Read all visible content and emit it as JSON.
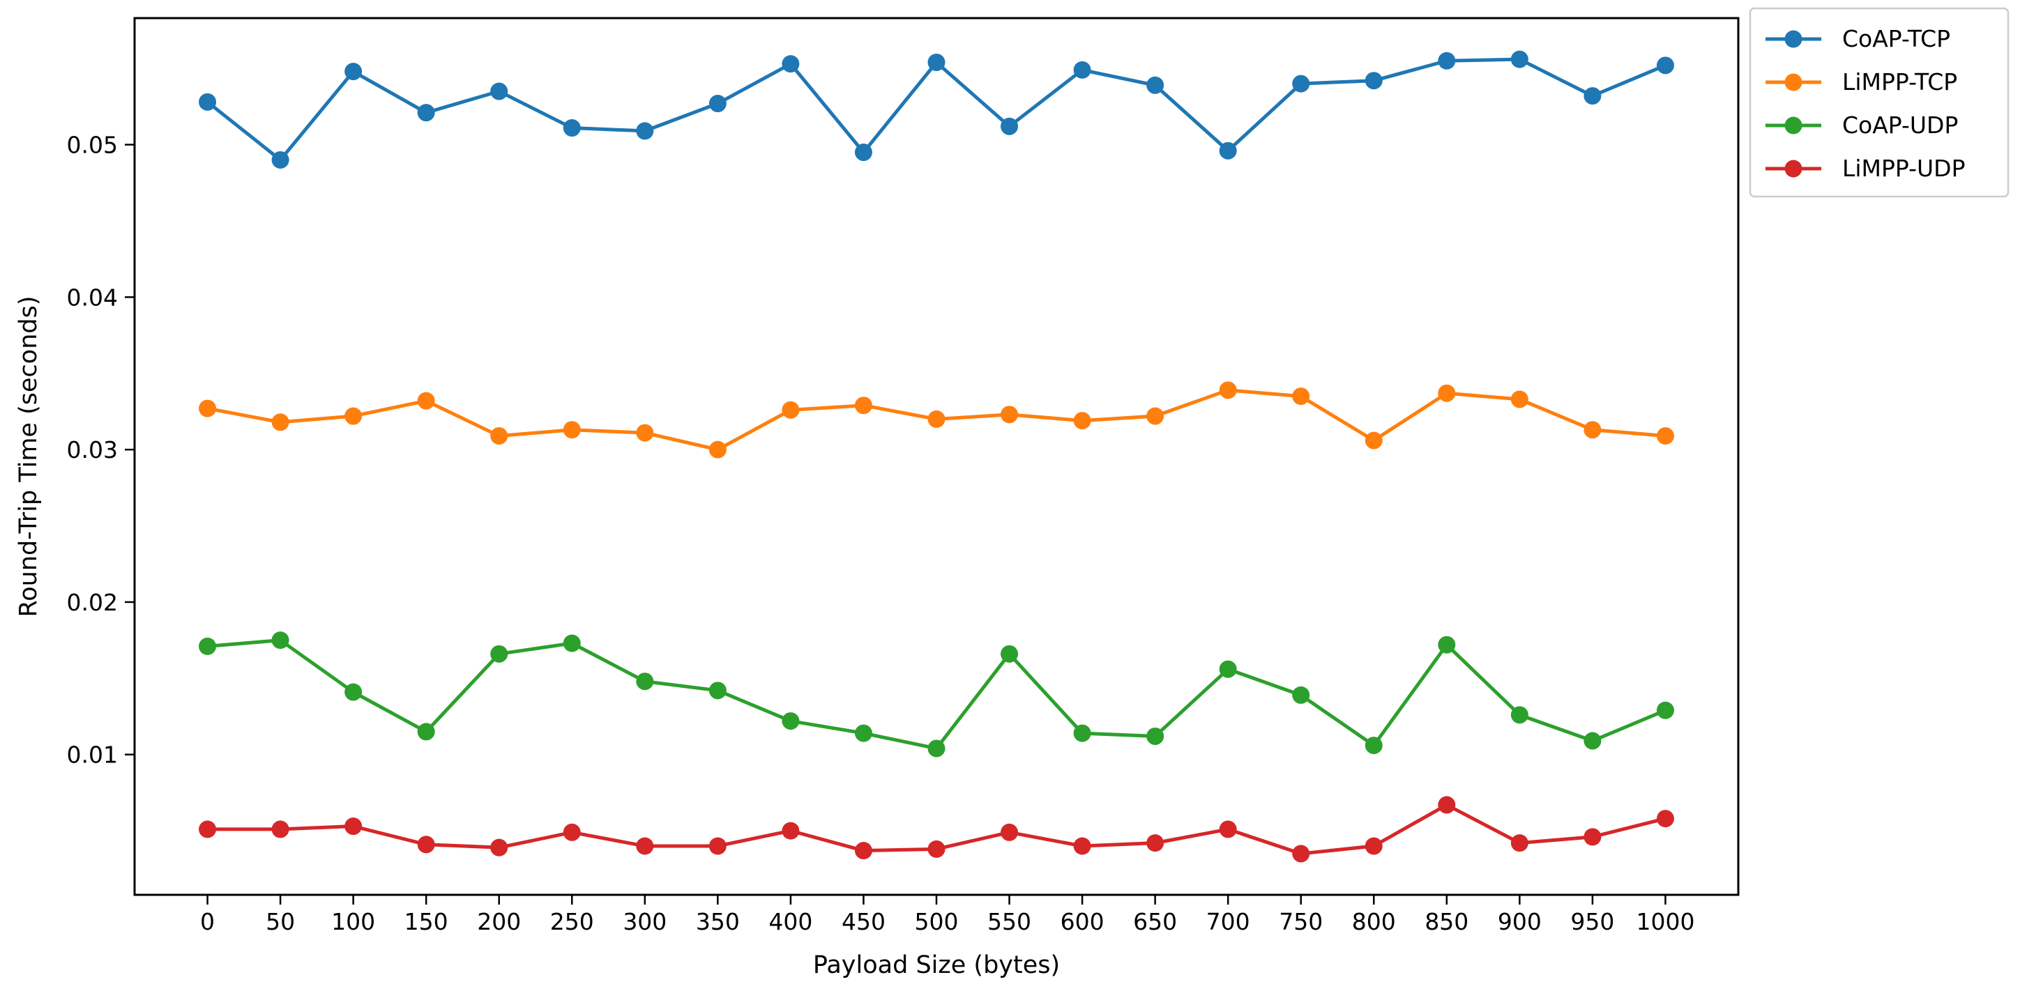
{
  "chart_data": {
    "type": "line",
    "xlabel": "Payload Size (bytes)",
    "ylabel": "Round-Trip Time (seconds)",
    "x": [
      0,
      50,
      100,
      150,
      200,
      250,
      300,
      350,
      400,
      450,
      500,
      550,
      600,
      650,
      700,
      750,
      800,
      850,
      900,
      950,
      1000
    ],
    "x_ticks": [
      "0",
      "50",
      "100",
      "150",
      "200",
      "250",
      "300",
      "350",
      "400",
      "450",
      "500",
      "550",
      "600",
      "650",
      "700",
      "750",
      "800",
      "850",
      "900",
      "950",
      "1000"
    ],
    "y_ticks": [
      {
        "value": 0.01,
        "label": "0.01"
      },
      {
        "value": 0.02,
        "label": "0.02"
      },
      {
        "value": 0.03,
        "label": "0.03"
      },
      {
        "value": 0.04,
        "label": "0.04"
      },
      {
        "value": 0.05,
        "label": "0.05"
      }
    ],
    "xlim": [
      -50,
      1050
    ],
    "ylim": [
      0.0008,
      0.0583
    ],
    "grid": false,
    "legend_position": "outside-top-right",
    "series": [
      {
        "name": "CoAP-TCP",
        "color": "#1f77b4",
        "values": [
          0.0528,
          0.049,
          0.0548,
          0.0521,
          0.0535,
          0.0511,
          0.0509,
          0.0527,
          0.0553,
          0.0495,
          0.0554,
          0.0512,
          0.0549,
          0.0539,
          0.0496,
          0.054,
          0.0542,
          0.0555,
          0.0556,
          0.0532,
          0.0552
        ]
      },
      {
        "name": "LiMPP-TCP",
        "color": "#ff7f0e",
        "values": [
          0.0327,
          0.0318,
          0.0322,
          0.0332,
          0.0309,
          0.0313,
          0.0311,
          0.03,
          0.0326,
          0.0329,
          0.032,
          0.0323,
          0.0319,
          0.0322,
          0.0339,
          0.0335,
          0.0306,
          0.0337,
          0.0333,
          0.0313,
          0.0309
        ]
      },
      {
        "name": "CoAP-UDP",
        "color": "#2ca02c",
        "values": [
          0.0171,
          0.0175,
          0.0141,
          0.0115,
          0.0166,
          0.0173,
          0.0148,
          0.0142,
          0.0122,
          0.0114,
          0.0104,
          0.0166,
          0.0114,
          0.0112,
          0.0156,
          0.0139,
          0.0106,
          0.0172,
          0.0126,
          0.0109,
          0.0129
        ]
      },
      {
        "name": "LiMPP-UDP",
        "color": "#d62728",
        "values": [
          0.0051,
          0.0051,
          0.0053,
          0.0041,
          0.0039,
          0.0049,
          0.004,
          0.004,
          0.005,
          0.0037,
          0.0038,
          0.0049,
          0.004,
          0.0042,
          0.0051,
          0.0035,
          0.004,
          0.0067,
          0.0042,
          0.0046,
          0.0058
        ]
      }
    ]
  }
}
